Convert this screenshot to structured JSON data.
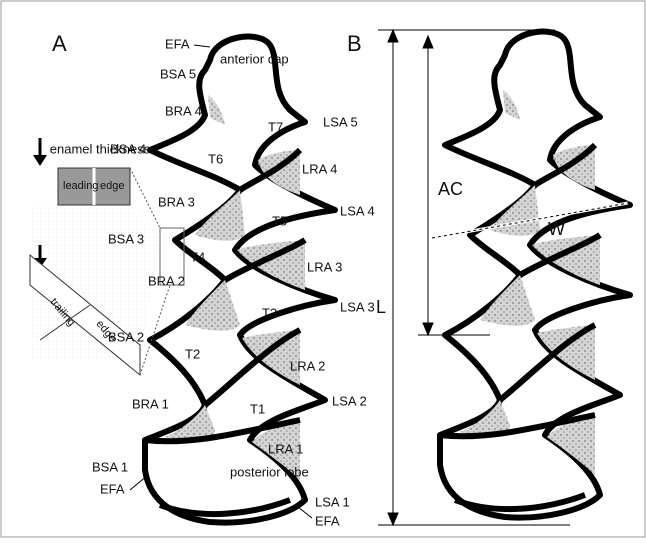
{
  "panels": {
    "a": "A",
    "b": "B"
  },
  "labels": {
    "efa_top": "EFA",
    "anterior_cap": "anterior cap",
    "bsa5": "BSA 5",
    "bra4": "BRA 4",
    "bsa4": "BSA 4",
    "t7": "T7",
    "lsa5": "LSA 5",
    "t6": "T6",
    "lra4": "LRA 4",
    "bra3": "BRA 3",
    "t5": "T5",
    "lsa4": "LSA 4",
    "bsa3": "BSA 3",
    "t4": "T4",
    "lra3": "LRA 3",
    "bra2": "BRA 2",
    "t3": "T3",
    "lsa3": "LSA 3",
    "bsa2": "BSA 2",
    "t2": "T2",
    "lra2": "LRA 2",
    "bra1": "BRA 1",
    "t1": "T1",
    "lsa2": "LSA 2",
    "lra1": "LRA 1",
    "bsa1": "BSA 1",
    "efa_left": "EFA",
    "posterior_lobe": "posterior lobe",
    "lsa1": "LSA 1",
    "efa_right": "EFA"
  },
  "inset": {
    "title": "enamel thickness",
    "leading": "leading",
    "edge_top": "edge",
    "trailing": "trailing",
    "edge_bottom": "edge"
  },
  "measures": {
    "ac": "AC",
    "w": "W",
    "l": "L"
  }
}
